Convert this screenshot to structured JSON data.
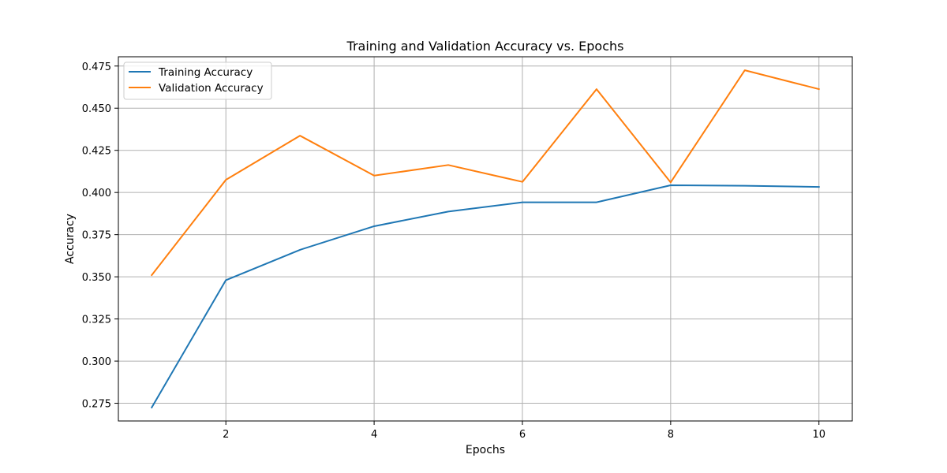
{
  "chart_data": {
    "type": "line",
    "title": "Training and Validation Accuracy vs. Epochs",
    "xlabel": "Epochs",
    "ylabel": "Accuracy",
    "x": [
      1,
      2,
      3,
      4,
      5,
      6,
      7,
      8,
      9,
      10
    ],
    "xlim": [
      0.55,
      10.45
    ],
    "ylim": [
      0.2645,
      0.4805
    ],
    "xticks": [
      2,
      4,
      6,
      8,
      10
    ],
    "xtick_labels": [
      "2",
      "4",
      "6",
      "8",
      "10"
    ],
    "yticks": [
      0.275,
      0.3,
      0.325,
      0.35,
      0.375,
      0.4,
      0.425,
      0.45,
      0.475
    ],
    "ytick_labels": [
      "0.275",
      "0.300",
      "0.325",
      "0.350",
      "0.375",
      "0.400",
      "0.425",
      "0.450",
      "0.475"
    ],
    "grid": true,
    "legend_position": "top-left",
    "series": [
      {
        "name": "Training Accuracy",
        "color": "#1f77b4",
        "values": [
          0.2725,
          0.348,
          0.366,
          0.38,
          0.3887,
          0.3942,
          0.3942,
          0.4043,
          0.404,
          0.4033
        ]
      },
      {
        "name": "Validation Accuracy",
        "color": "#ff7f0e",
        "values": [
          0.351,
          0.4075,
          0.4337,
          0.41,
          0.4163,
          0.4063,
          0.4613,
          0.406,
          0.4725,
          0.4613
        ]
      }
    ]
  }
}
